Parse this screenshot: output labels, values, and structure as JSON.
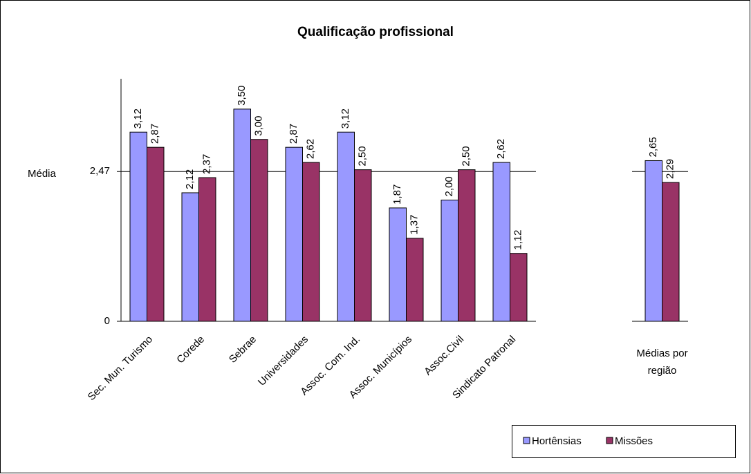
{
  "chart_data": [
    {
      "type": "bar",
      "title": "Qualificação profissional",
      "annotation": "Média",
      "categories": [
        "Sec. Mun. Turismo",
        "Corede",
        "Sebrae",
        "Universidades",
        "Assoc. Com. Ind.",
        "Assoc. Municípios",
        "Assoc.Civil",
        "Sindicato Patronal"
      ],
      "series": [
        {
          "name": "Hortênsias",
          "color": "#9999ff",
          "values": [
            3.12,
            2.12,
            3.5,
            2.87,
            3.12,
            1.87,
            2.0,
            2.62
          ],
          "value_labels": [
            "3,12",
            "2,12",
            "3,50",
            "2,87",
            "3,12",
            "1,87",
            "2,00",
            "2,62"
          ]
        },
        {
          "name": "Missões",
          "color": "#993366",
          "values": [
            2.87,
            2.37,
            3.0,
            2.62,
            2.5,
            1.37,
            2.5,
            1.12
          ],
          "value_labels": [
            "2,87",
            "2,37",
            "3,00",
            "2,62",
            "2,50",
            "1,37",
            "2,50",
            "1,12"
          ]
        }
      ],
      "ylim": [
        0,
        4
      ],
      "yticks": [
        0,
        {
          "value": 2.47,
          "label": "2,47"
        }
      ],
      "legend": "bottom-right"
    },
    {
      "type": "bar",
      "categories": [
        "Médias por região"
      ],
      "series": [
        {
          "color": "#9999ff",
          "values": [
            2.65
          ],
          "value_labels": [
            "2,65"
          ]
        },
        {
          "color": "#993366",
          "values": [
            2.29
          ],
          "value_labels": [
            "2,29"
          ]
        }
      ],
      "ylim": [
        0,
        4
      ],
      "yticks": [
        0,
        2.47
      ]
    }
  ]
}
